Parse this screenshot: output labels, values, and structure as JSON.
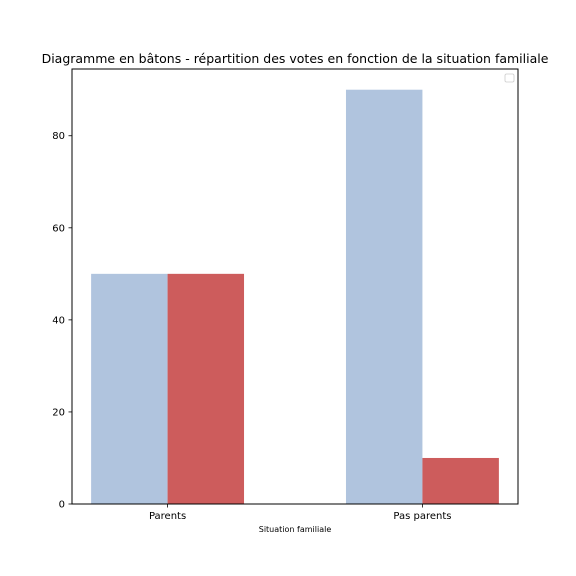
{
  "chart_data": {
    "type": "bar",
    "title": "Diagramme en bâtons - répartition des votes en fonction de la situation familiale",
    "xlabel": "Situation familiale",
    "ylabel": "",
    "categories": [
      "Parents",
      "Pas parents"
    ],
    "series": [
      {
        "values": [
          50,
          90
        ],
        "color": "#b0c4de"
      },
      {
        "values": [
          50,
          10
        ],
        "color": "#cd5c5c"
      }
    ],
    "ylim": [
      0,
      94.5
    ],
    "yticks": [
      0,
      20,
      40,
      60,
      80
    ],
    "grid": false,
    "legend": {
      "placement": "upper-right",
      "entries": []
    }
  }
}
